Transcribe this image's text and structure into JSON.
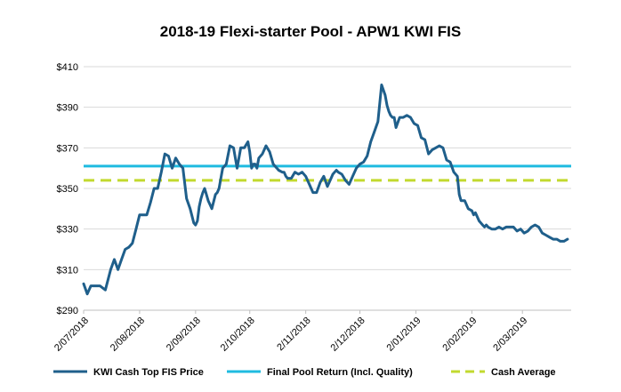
{
  "chart_data": {
    "type": "line",
    "title": "2018-19 Flexi-starter Pool - APW1 KWI FIS",
    "xlabel": "",
    "ylabel": "",
    "ylim": [
      290,
      410
    ],
    "y_ticks": [
      290,
      310,
      330,
      350,
      370,
      390,
      410
    ],
    "y_tick_labels": [
      "$290",
      "$310",
      "$330",
      "$350",
      "$370",
      "$390",
      "$410"
    ],
    "x_tick_labels": [
      "2/07/2018",
      "2/08/2018",
      "2/09/2018",
      "2/10/2018",
      "2/11/2018",
      "2/12/2018",
      "2/01/2019",
      "2/02/2019",
      "2/03/2019"
    ],
    "x_range": [
      0,
      270
    ],
    "x_ticks": [
      0,
      31,
      62,
      92,
      123,
      153,
      184,
      215,
      243
    ],
    "grid": true,
    "legend_position": "bottom",
    "series": [
      {
        "name": "KWI Cash Top FIS Price",
        "color": "#1f5f8b",
        "style": "solid",
        "x": [
          0,
          2,
          4,
          6,
          9,
          12,
          15,
          17,
          19,
          21,
          23,
          25,
          27,
          29,
          31,
          33,
          35,
          37,
          39,
          41,
          43,
          45,
          47,
          49,
          51,
          53,
          55,
          57,
          59,
          61,
          62,
          63,
          64,
          65,
          66,
          67,
          68,
          69,
          70,
          71,
          73,
          74,
          75,
          77,
          79,
          81,
          83,
          85,
          87,
          89,
          91,
          92,
          93,
          94,
          95,
          96,
          97,
          99,
          101,
          103,
          105,
          106,
          107,
          108,
          110,
          111,
          112,
          113,
          115,
          117,
          119,
          121,
          123,
          125,
          127,
          129,
          131,
          133,
          135,
          137,
          138,
          139,
          140,
          141,
          143,
          145,
          147,
          149,
          151,
          153,
          155,
          157,
          159,
          161,
          163,
          165,
          167,
          168,
          169,
          170,
          171,
          172,
          173,
          175,
          177,
          179,
          181,
          183,
          185,
          187,
          189,
          191,
          193,
          195,
          197,
          199,
          201,
          203,
          205,
          207,
          208,
          209,
          210,
          211,
          213,
          215,
          216,
          217,
          218,
          219,
          220,
          221,
          222,
          223,
          224,
          226,
          228,
          230,
          232,
          234,
          236,
          238,
          240,
          242,
          244,
          246,
          248,
          250,
          252,
          254,
          256,
          258,
          260,
          262,
          264,
          266,
          268
        ],
        "y": [
          303,
          298,
          302,
          302,
          302,
          300,
          310,
          315,
          310,
          315,
          320,
          321,
          323,
          330,
          337,
          337,
          337,
          343,
          350,
          350,
          358,
          367,
          366,
          360,
          365,
          362,
          360,
          345,
          340,
          333,
          332,
          334,
          341,
          345,
          348,
          350,
          347,
          344,
          342,
          340,
          347,
          348,
          350,
          360,
          362,
          371,
          370,
          360,
          370,
          370,
          373,
          368,
          360,
          362,
          362,
          360,
          365,
          367,
          371,
          368,
          362,
          361,
          360,
          359,
          358,
          358,
          356,
          355,
          355,
          358,
          357,
          358,
          356,
          352,
          348,
          348,
          353,
          356,
          351,
          355,
          357,
          358,
          359,
          358,
          357,
          354,
          352,
          356,
          360,
          362,
          363,
          366,
          373,
          378,
          383,
          401,
          396,
          391,
          388,
          386,
          385,
          385,
          380,
          385,
          385,
          386,
          385,
          382,
          381,
          375,
          374,
          367,
          369,
          370,
          371,
          370,
          364,
          363,
          358,
          356,
          347,
          344,
          344,
          344,
          340,
          339,
          337,
          338,
          336,
          334,
          333,
          332,
          331,
          332,
          331,
          330,
          330,
          331,
          330,
          331,
          331,
          331,
          329,
          330,
          328,
          329,
          331,
          332,
          331,
          328,
          327,
          326,
          325,
          325,
          324,
          324,
          325
        ]
      },
      {
        "name": "Final Pool Return (Incl. Quality)",
        "color": "#1fbbe0",
        "style": "solid",
        "value": 361
      },
      {
        "name": "Cash Average",
        "color": "#c2d92f",
        "style": "dashed",
        "value": 354
      }
    ]
  }
}
